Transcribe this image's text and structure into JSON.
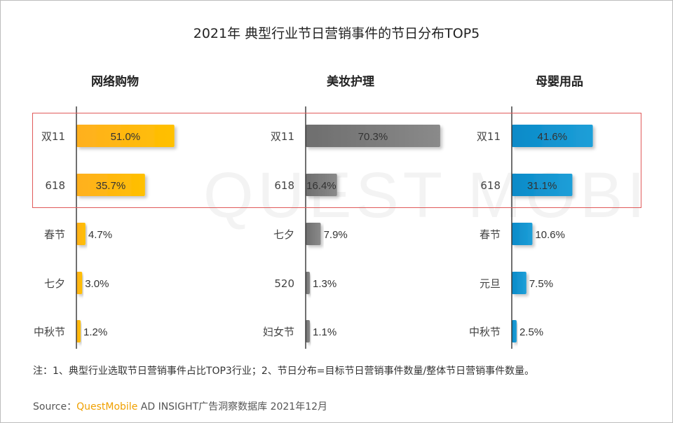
{
  "title": "2021年 典型行业节日营销事件的节日分布TOP5",
  "watermark": "QUEST MOBILE",
  "note": "注：1、典型行业选取节日营销事件占比TOP3行业；2、节日分布=目标节日营销事件数量/整体节日营销事件数量。",
  "source": {
    "prefix": "Source：",
    "brand": "QuestMobile",
    "suffix": " AD INSIGHT广告洞察数据库 2021年12月"
  },
  "chart_data": [
    {
      "type": "bar",
      "orientation": "horizontal",
      "title": "网络购物",
      "color": "#ffc000",
      "color_light": "#ffb020",
      "categories": [
        "双11",
        "618",
        "春节",
        "七夕",
        "中秋节"
      ],
      "values": [
        51.0,
        35.7,
        4.7,
        3.0,
        1.2
      ],
      "labels": [
        "51.0%",
        "35.7%",
        "4.7%",
        "3.0%",
        "1.2%"
      ],
      "xlim": [
        0,
        100
      ]
    },
    {
      "type": "bar",
      "orientation": "horizontal",
      "title": "美妆护理",
      "color": "#8a8a8a",
      "color_light": "#6e6e6e",
      "categories": [
        "双11",
        "618",
        "七夕",
        "520",
        "妇女节"
      ],
      "values": [
        70.3,
        16.4,
        7.9,
        1.3,
        1.1
      ],
      "labels": [
        "70.3%",
        "16.4%",
        "7.9%",
        "1.3%",
        "1.1%"
      ],
      "xlim": [
        0,
        100
      ]
    },
    {
      "type": "bar",
      "orientation": "horizontal",
      "title": "母婴用品",
      "color": "#1e9fd8",
      "color_light": "#0a8ac8",
      "categories": [
        "双11",
        "618",
        "春节",
        "元旦",
        "中秋节"
      ],
      "values": [
        41.6,
        31.1,
        10.6,
        7.5,
        2.5
      ],
      "labels": [
        "41.6%",
        "31.1%",
        "10.6%",
        "7.5%",
        "2.5%"
      ],
      "xlim": [
        0,
        100
      ]
    }
  ]
}
